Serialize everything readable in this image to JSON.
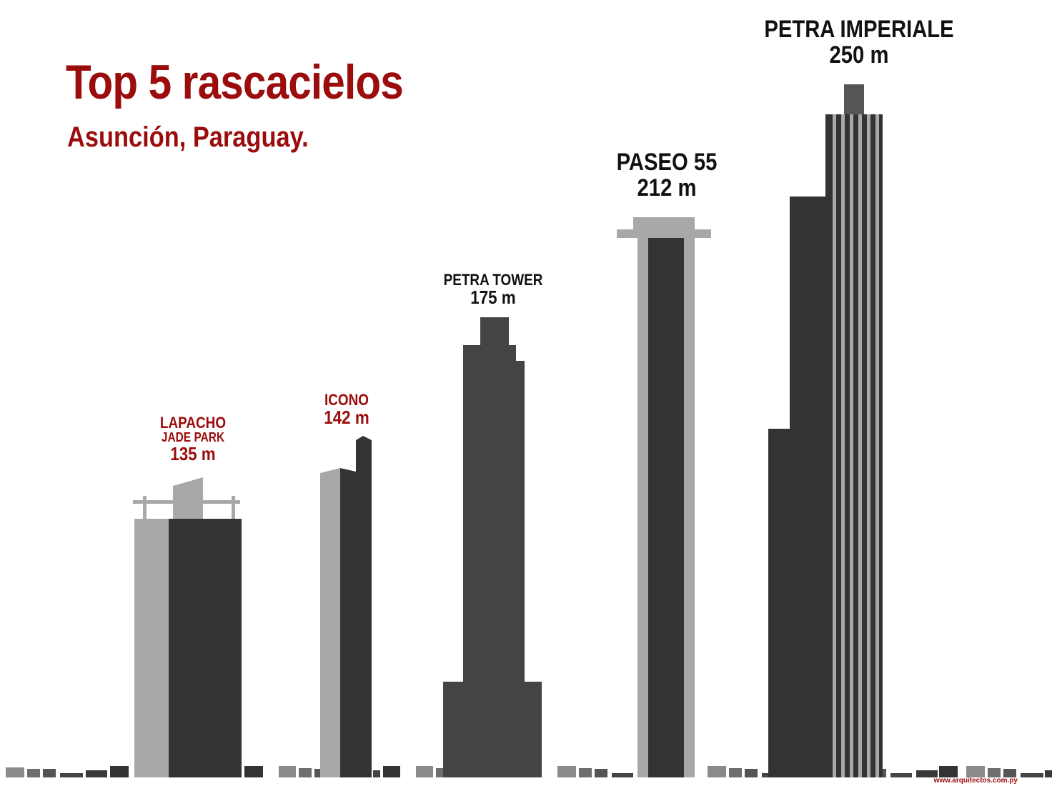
{
  "header": {
    "title": "Top 5 rascacielos",
    "subtitle": "Asunción, Paraguay."
  },
  "buildings": [
    {
      "name": "LAPACHO",
      "name_line2": "JADE PARK",
      "height_label": "135 m",
      "height_m": 135,
      "label_color": "#9b0c0c"
    },
    {
      "name": "ICONO",
      "height_label": "142 m",
      "height_m": 142,
      "label_color": "#9b0c0c"
    },
    {
      "name": "PETRA TOWER",
      "height_label": "175 m",
      "height_m": 175,
      "label_color": "#111111"
    },
    {
      "name": "PASEO 55",
      "height_label": "212 m",
      "height_m": 212,
      "label_color": "#111111"
    },
    {
      "name": "PETRA IMPERIALE",
      "height_label": "250 m",
      "height_m": 250,
      "label_color": "#111111"
    }
  ],
  "footer": {
    "url": "www.arquitectos.com.py"
  },
  "colors": {
    "accent_red": "#9b0c0c",
    "text_black": "#111111",
    "building_dark": "#333333",
    "building_mid": "#444444",
    "building_light": "#a8a8a8",
    "background": "#ffffff"
  }
}
